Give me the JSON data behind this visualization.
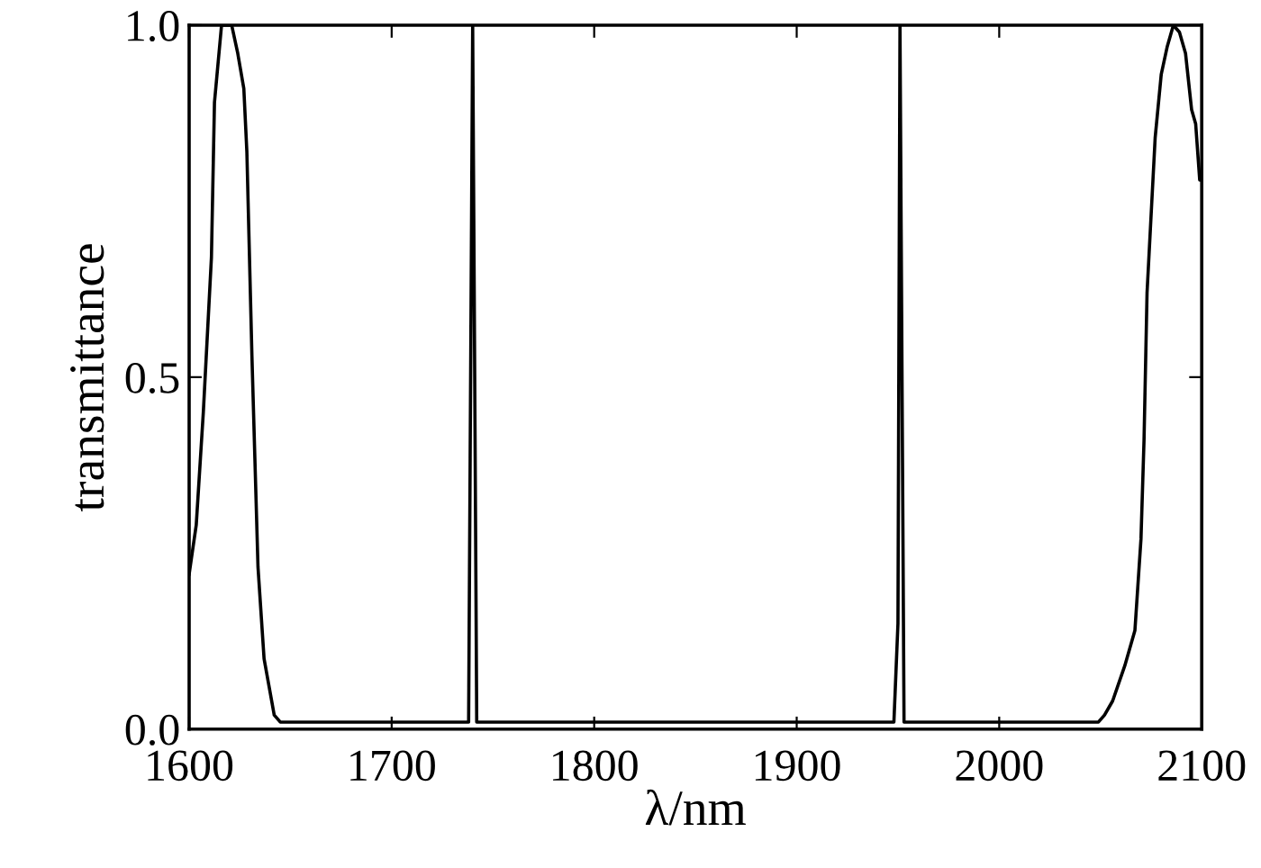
{
  "chart_data": {
    "type": "line",
    "xlabel": "λ/nm",
    "ylabel": "transmittance",
    "series": [
      {
        "color": "#000000",
        "x": [
          1600,
          1603.5,
          1607,
          1611,
          1612.5,
          1616,
          1620,
          1621,
          1624,
          1627,
          1628.5,
          1631,
          1634,
          1637,
          1642,
          1645,
          1700,
          1738,
          1740,
          1742,
          1800,
          1900,
          1948,
          1950,
          1951,
          1953,
          2000,
          2049,
          2052,
          2056,
          2062,
          2067,
          2070,
          2071.5,
          2073,
          2077,
          2080,
          2083,
          2086,
          2089,
          2092,
          2095,
          2097,
          2099,
          2100
        ],
        "values": [
          0.22,
          0.29,
          0.45,
          0.67,
          0.89,
          1.0,
          1.0,
          1.0,
          0.96,
          0.91,
          0.82,
          0.53,
          0.23,
          0.1,
          0.02,
          0.01,
          0.01,
          0.01,
          1.0,
          0.01,
          0.01,
          0.01,
          0.01,
          0.15,
          1.0,
          0.01,
          0.01,
          0.01,
          0.02,
          0.04,
          0.09,
          0.14,
          0.27,
          0.41,
          0.62,
          0.84,
          0.93,
          0.97,
          1.0,
          0.99,
          0.96,
          0.88,
          0.86,
          0.78,
          0.78
        ]
      }
    ],
    "xlim": [
      1600,
      2100
    ],
    "xticks": [
      1600,
      1700,
      1800,
      1900,
      2000,
      2100
    ],
    "ylim": [
      0,
      1
    ],
    "yticks": [
      {
        "value": 0,
        "label": "0.0"
      },
      {
        "value": 0.5,
        "label": "0.5"
      },
      {
        "value": 1,
        "label": "1.0"
      }
    ],
    "grid": false,
    "marker": "none",
    "line_style": "solid"
  }
}
